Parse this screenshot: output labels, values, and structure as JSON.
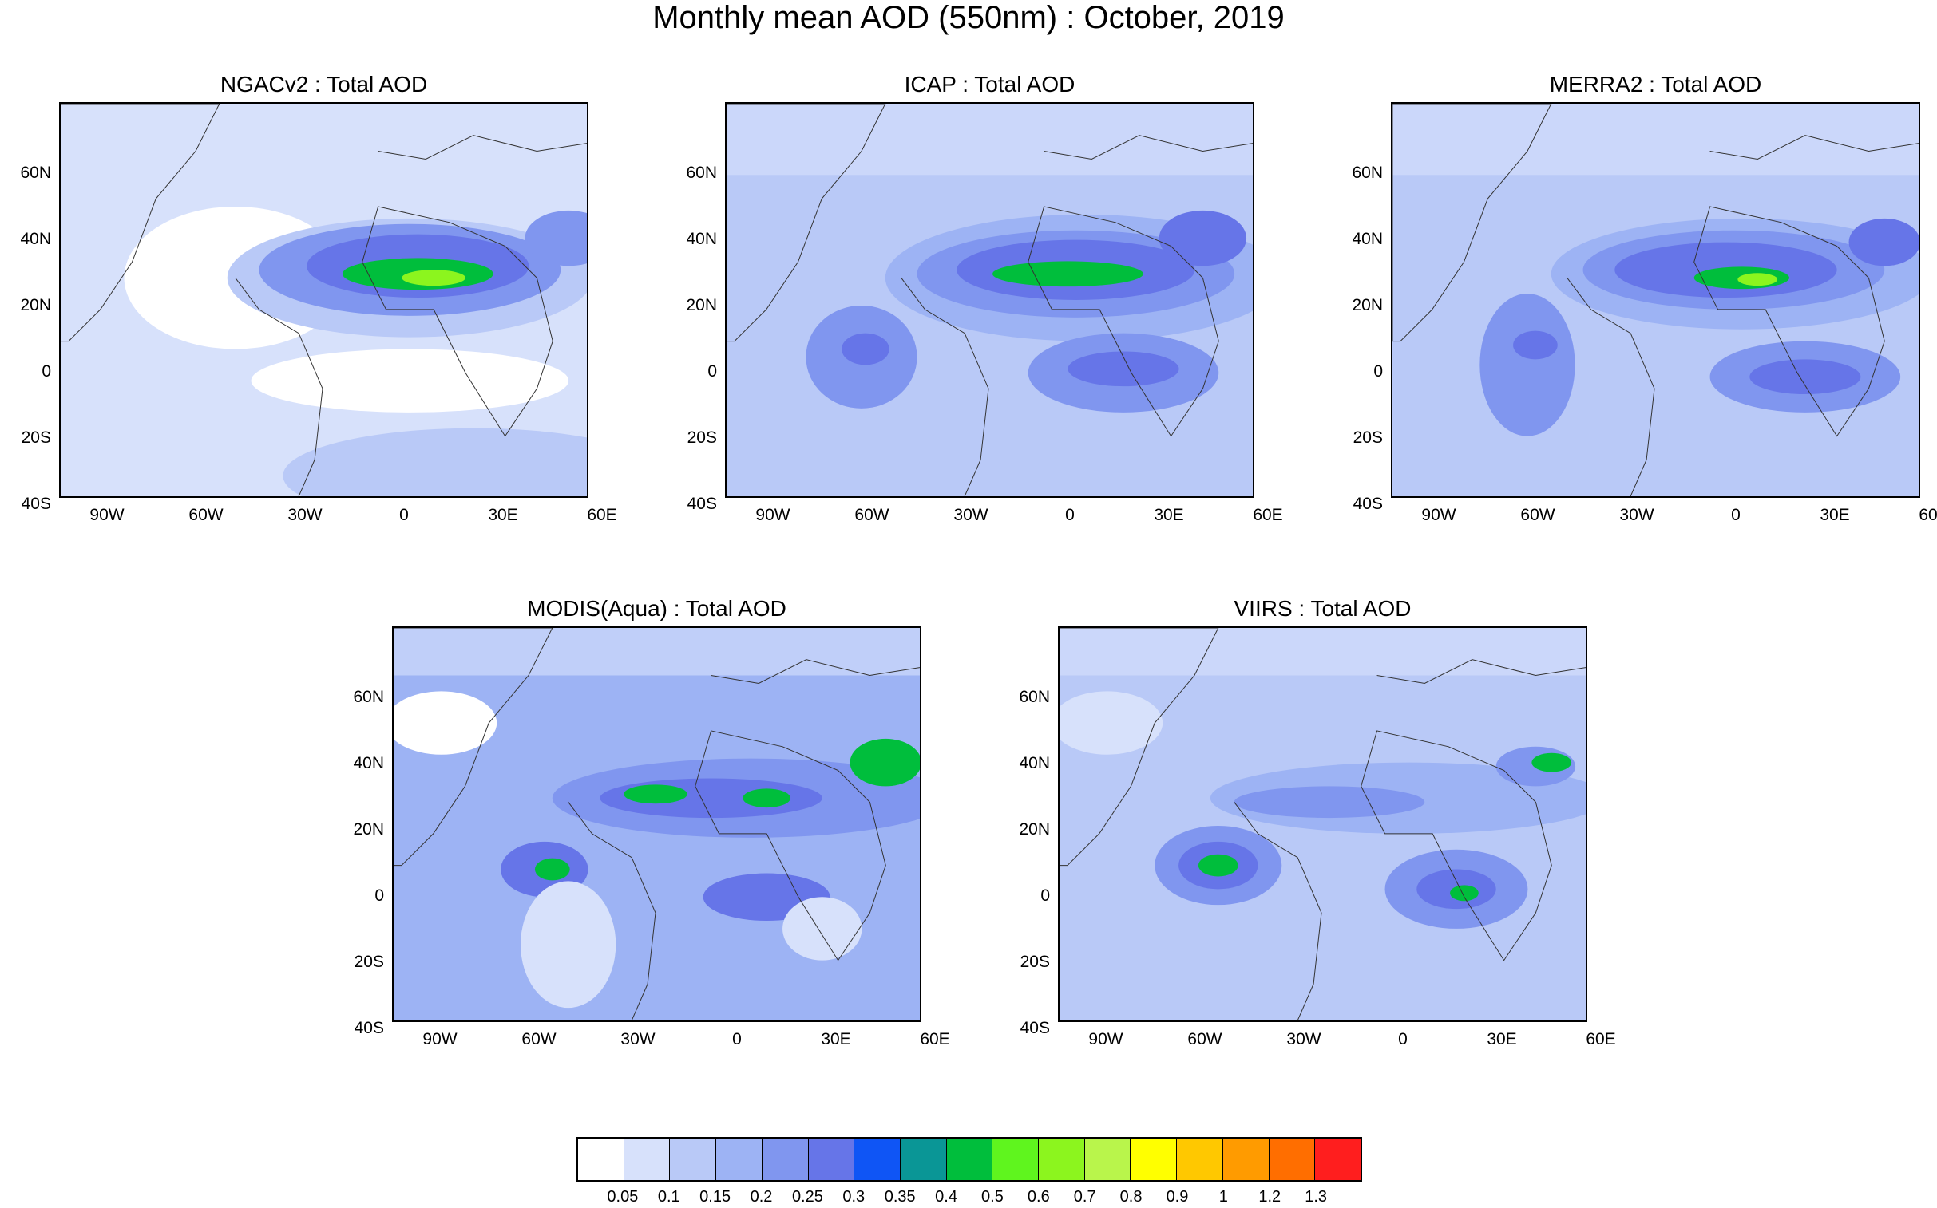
{
  "figure": {
    "title": "Monthly mean AOD (550nm) : October, 2019"
  },
  "axes": {
    "lat_ticks": [
      "60N",
      "40N",
      "20N",
      "0",
      "20S",
      "40S"
    ],
    "lon_ticks": [
      "90W",
      "60W",
      "30W",
      "0",
      "30E",
      "60E"
    ]
  },
  "panels": [
    {
      "title": "NGACv2 : Total AOD"
    },
    {
      "title": "ICAP : Total AOD"
    },
    {
      "title": "MERRA2 : Total AOD"
    },
    {
      "title": "MODIS(Aqua) : Total AOD"
    },
    {
      "title": "VIIRS : Total AOD"
    }
  ],
  "colorbar": {
    "colors": [
      "#ffffff",
      "#d7e1fb",
      "#b9c9f7",
      "#9db3f4",
      "#8096ef",
      "#6675e8",
      "#0f55f5",
      "#0a9696",
      "#00be3c",
      "#5ff51e",
      "#8cf51e",
      "#b9f54b",
      "#ffff00",
      "#ffc800",
      "#ff9b00",
      "#ff6e00",
      "#ff1e1e"
    ],
    "labels": [
      "0.05",
      "0.1",
      "0.15",
      "0.2",
      "0.25",
      "0.3",
      "0.35",
      "0.4",
      "0.5",
      "0.6",
      "0.7",
      "0.8",
      "0.9",
      "1",
      "1.2",
      "1.3"
    ]
  }
}
